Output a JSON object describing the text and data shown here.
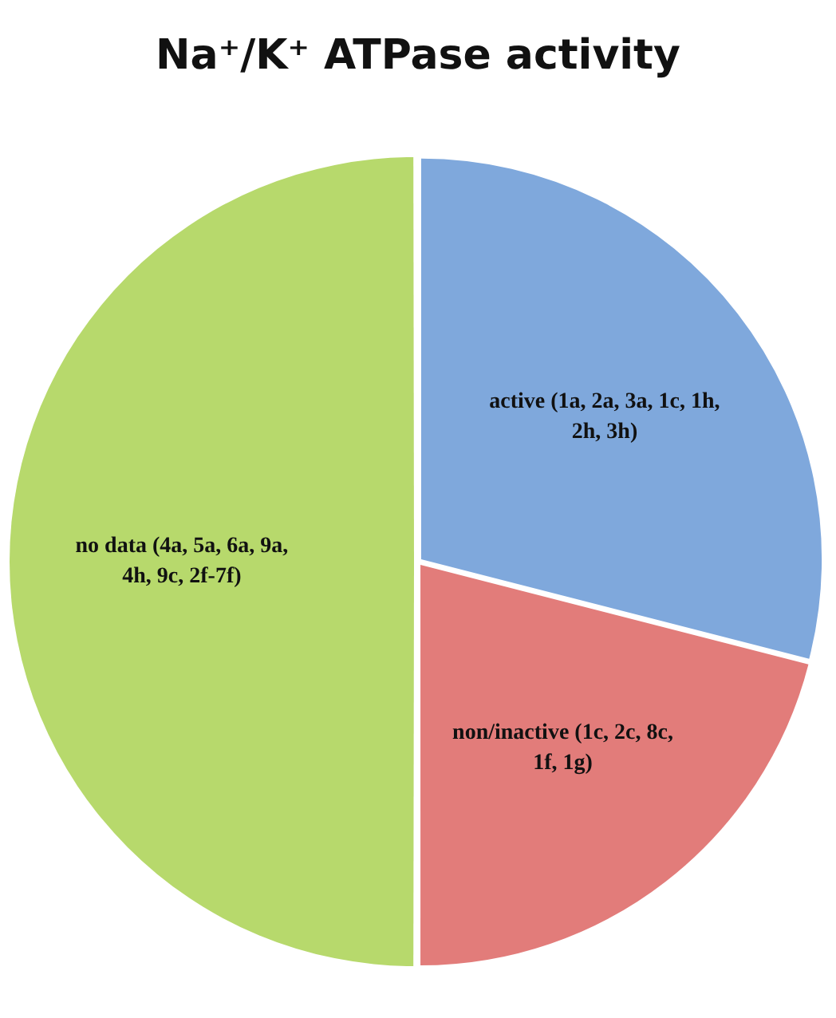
{
  "chart_data": {
    "type": "pie",
    "title": "Na⁺/K⁺ ATPase activity",
    "categories": [
      "active (1a, 2a, 3a, 1c, 1h, 2h, 3h)",
      "non/inactive (1c, 2c, 8c, 1f, 1g)",
      "no data (4a, 5a, 6a, 9a, 4h, 9c, 2f-7f)"
    ],
    "values": [
      29,
      21,
      50
    ],
    "colors": [
      "#7fa8dc",
      "#e27c7a",
      "#b7d96c"
    ],
    "legend": false
  }
}
